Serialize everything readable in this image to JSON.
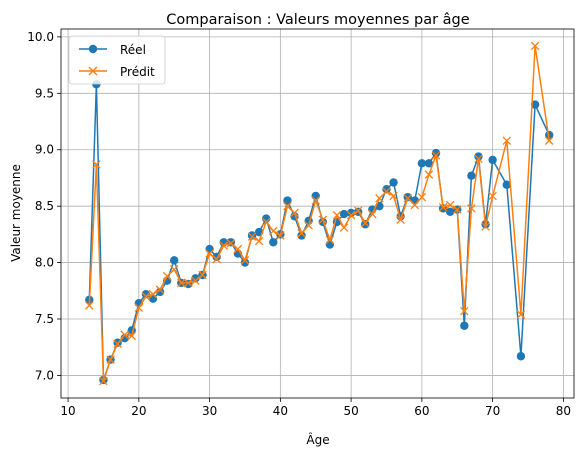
{
  "chart_data": {
    "type": "line",
    "title": "Comparaison : Valeurs moyennes par âge",
    "xlabel": "Âge",
    "ylabel": "Valeur moyenne",
    "xlim": [
      9,
      81.5
    ],
    "ylim": [
      6.8,
      10.07
    ],
    "xticks": [
      10,
      20,
      30,
      40,
      50,
      60,
      70,
      80
    ],
    "yticks": [
      7.0,
      7.5,
      8.0,
      8.5,
      9.0,
      9.5,
      10.0
    ],
    "grid": true,
    "legend_position": "top-left",
    "x": [
      13,
      14,
      15,
      16,
      17,
      18,
      19,
      20,
      21,
      22,
      23,
      24,
      25,
      26,
      27,
      28,
      29,
      30,
      31,
      32,
      33,
      34,
      35,
      36,
      37,
      38,
      39,
      40,
      41,
      42,
      43,
      44,
      45,
      46,
      47,
      48,
      49,
      50,
      51,
      52,
      53,
      54,
      55,
      56,
      57,
      58,
      59,
      60,
      61,
      62,
      63,
      64,
      65,
      66,
      67,
      68,
      69,
      70,
      72,
      74,
      76,
      78
    ],
    "series": [
      {
        "name": "Réel",
        "color": "#1f77b4",
        "marker": "circle",
        "values": [
          7.67,
          9.58,
          6.96,
          7.14,
          7.29,
          7.33,
          7.4,
          7.64,
          7.72,
          7.68,
          7.74,
          7.84,
          8.02,
          7.82,
          7.81,
          7.86,
          7.89,
          8.12,
          8.05,
          8.18,
          8.18,
          8.08,
          8.0,
          8.24,
          8.27,
          8.39,
          8.18,
          8.25,
          8.55,
          8.41,
          8.24,
          8.37,
          8.59,
          8.36,
          8.16,
          8.36,
          8.43,
          8.44,
          8.45,
          8.34,
          8.47,
          8.5,
          8.65,
          8.71,
          8.41,
          8.58,
          8.55,
          8.88,
          8.88,
          8.97,
          8.48,
          8.45,
          8.47,
          7.44,
          8.77,
          8.94,
          8.34,
          8.91,
          8.69,
          7.17,
          9.4,
          9.13
        ]
      },
      {
        "name": "Prédit",
        "color": "#ff7f0e",
        "marker": "x",
        "values": [
          7.62,
          8.87,
          6.95,
          7.14,
          7.28,
          7.36,
          7.35,
          7.6,
          7.7,
          7.72,
          7.76,
          7.88,
          7.94,
          7.82,
          7.82,
          7.84,
          7.89,
          8.08,
          8.03,
          8.15,
          8.17,
          8.12,
          8.02,
          8.23,
          8.19,
          8.36,
          8.28,
          8.24,
          8.5,
          8.44,
          8.26,
          8.33,
          8.55,
          8.38,
          8.2,
          8.42,
          8.31,
          8.42,
          8.46,
          8.35,
          8.43,
          8.57,
          8.63,
          8.59,
          8.38,
          8.57,
          8.51,
          8.58,
          8.78,
          8.95,
          8.49,
          8.51,
          8.47,
          7.57,
          8.48,
          8.92,
          8.32,
          8.59,
          9.08,
          7.54,
          9.92,
          9.08
        ]
      }
    ]
  }
}
